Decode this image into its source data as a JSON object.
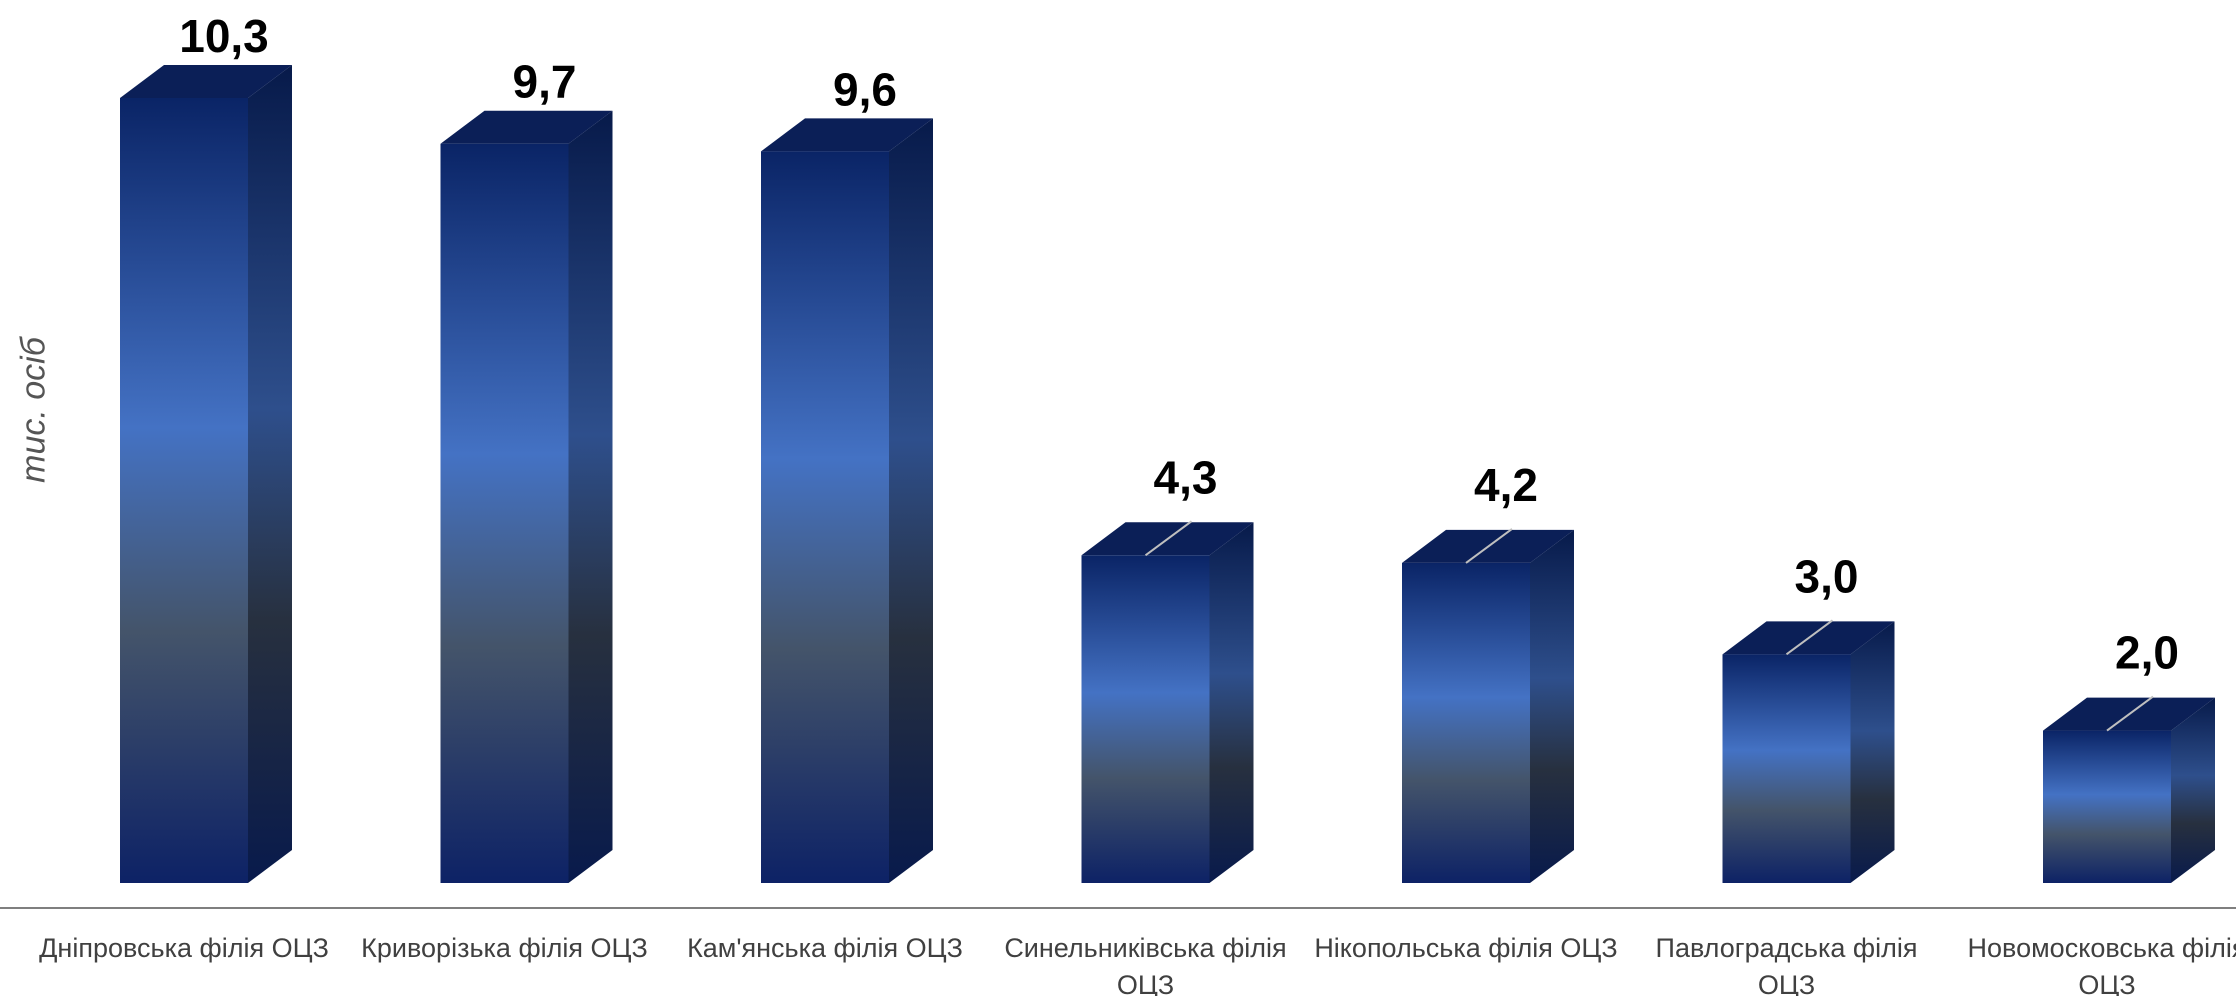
{
  "chart_data": {
    "type": "bar",
    "style": "3d-column",
    "ylabel": "тис. осіб",
    "categories": [
      "Дніпровська філія ОЦЗ",
      "Криворізька філія ОЦЗ",
      "Кам'янська філія ОЦЗ",
      "Синельниківська філія ОЦЗ",
      "Нікопольська філія ОЦЗ",
      "Павлоградська філія ОЦЗ",
      "Новомосковська філія ОЦЗ"
    ],
    "values": [
      10.3,
      9.7,
      9.6,
      4.3,
      4.2,
      3.0,
      2.0
    ],
    "value_labels": [
      "10,3",
      "9,7",
      "9,6",
      "4,3",
      "4,2",
      "3,0",
      "2,0"
    ],
    "ylim": [
      0,
      10.3
    ],
    "grid": false,
    "legend": "none",
    "colors": {
      "bar_top": "#0a2466",
      "bar_mid": "#4472c4",
      "bar_low": "#44546a",
      "bar_bottom": "#0d2266",
      "axis": "#7f7f7f",
      "leader": "#bfbfbf",
      "label_text": "#000000"
    }
  }
}
